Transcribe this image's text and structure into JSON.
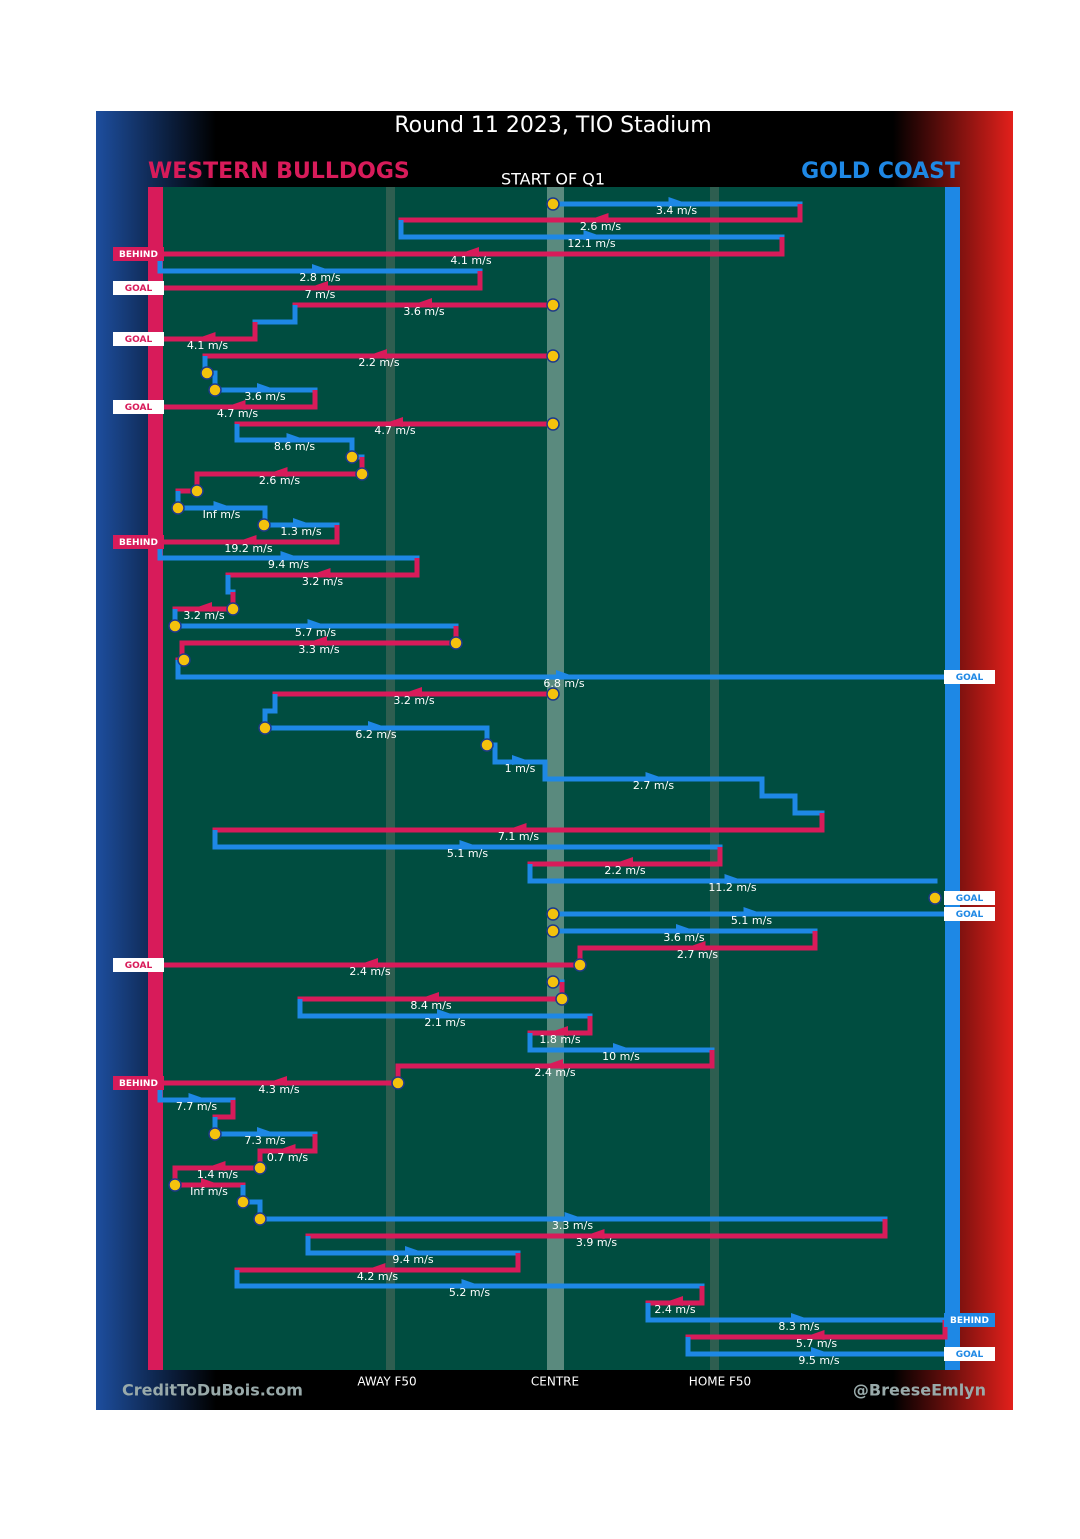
{
  "header": {
    "title": "Round 11 2023, TIO Stadium",
    "away_team": "WESTERN BULLDOGS",
    "home_team": "GOLD COAST",
    "subtitle": "START OF Q1"
  },
  "chains": [
    "3.4 m/s",
    "2.6 m/s",
    "12.1 m/s",
    "4.1 m/s",
    "2.8 m/s",
    "7 m/s",
    "3.6 m/s",
    "4.1 m/s",
    "2.2 m/s",
    "3.6 m/s",
    "4.7 m/s",
    "4.7 m/s",
    "8.6 m/s",
    "2.6 m/s",
    "Inf m/s",
    "1.3 m/s",
    "19.2 m/s",
    "9.4 m/s",
    "3.2 m/s",
    "3.2 m/s",
    "5.7 m/s",
    "3.3 m/s",
    "6.8 m/s",
    "3.2 m/s",
    "6.2 m/s",
    "1 m/s",
    "2.7 m/s",
    "7.1 m/s",
    "5.1 m/s",
    "2.2 m/s",
    "11.2 m/s",
    "5.1 m/s",
    "3.6 m/s",
    "2.7 m/s",
    "2.4 m/s",
    "8.4 m/s",
    "2.1 m/s",
    "1.8 m/s",
    "10 m/s",
    "2.4 m/s",
    "4.3 m/s",
    "7.7 m/s",
    "7.3 m/s",
    "0.7 m/s",
    "1.4 m/s",
    "Inf m/s",
    "3.3 m/s",
    "3.9 m/s",
    "9.4 m/s",
    "4.2 m/s",
    "5.2 m/s",
    "2.4 m/s",
    "8.3 m/s",
    "5.7 m/s",
    "9.5 m/s"
  ],
  "outcomes": [
    "BEHIND",
    "GOAL",
    "GOAL",
    "GOAL",
    "BEHIND",
    "GOAL",
    "GOAL",
    "GOAL",
    "GOAL",
    "BEHIND",
    "BEHIND",
    "GOAL"
  ],
  "field_labels": [
    "AWAY F50",
    "CENTRE",
    "HOME F50"
  ],
  "footer": {
    "left": "CreditToDuBois.com",
    "right": "@BreeseEmlyn"
  }
}
